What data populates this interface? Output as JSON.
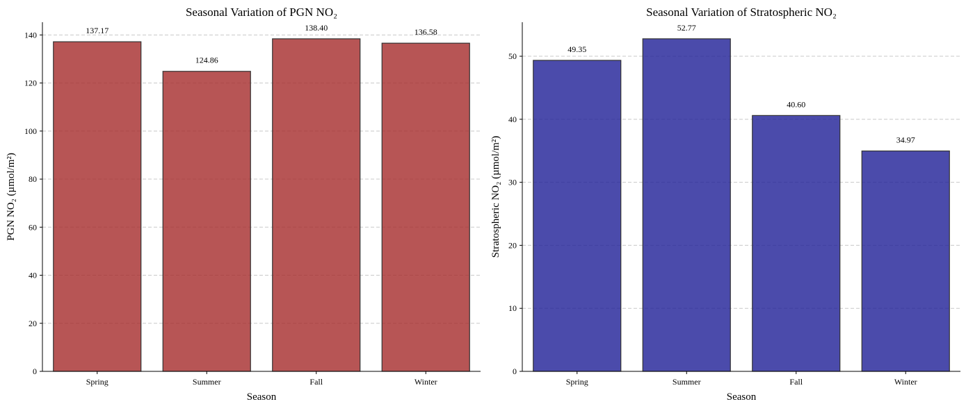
{
  "chart_data": [
    {
      "type": "bar",
      "title": "Seasonal Variation of PGN NO₂",
      "xlabel": "Season",
      "ylabel": "PGN NO₂ (µmol/m²)",
      "categories": [
        "Spring",
        "Summer",
        "Fall",
        "Winter"
      ],
      "values": [
        137.17,
        124.86,
        138.4,
        136.58
      ],
      "value_labels": [
        "137.17",
        "124.86",
        "138.40",
        "136.58"
      ],
      "ylim": [
        0,
        145.3
      ],
      "yticks": [
        0,
        20,
        40,
        60,
        80,
        100,
        120,
        140
      ],
      "ytick_labels": [
        "0",
        "20",
        "40",
        "60",
        "80",
        "100",
        "120",
        "140"
      ],
      "grid": "y-dashed",
      "bar_color": "#a52a2a"
    },
    {
      "type": "bar",
      "title": "Seasonal Variation of Stratospheric NO₂",
      "xlabel": "Season",
      "ylabel": "Stratospheric NO₂ (µmol/m²)",
      "categories": [
        "Spring",
        "Summer",
        "Fall",
        "Winter"
      ],
      "values": [
        49.35,
        52.77,
        40.6,
        34.97
      ],
      "value_labels": [
        "49.35",
        "52.77",
        "40.60",
        "34.97"
      ],
      "ylim": [
        0,
        55.4
      ],
      "yticks": [
        0,
        10,
        20,
        30,
        40,
        50
      ],
      "ytick_labels": [
        "0",
        "10",
        "20",
        "30",
        "40",
        "50"
      ],
      "grid": "y-dashed",
      "bar_color": "#1e1e96"
    }
  ]
}
